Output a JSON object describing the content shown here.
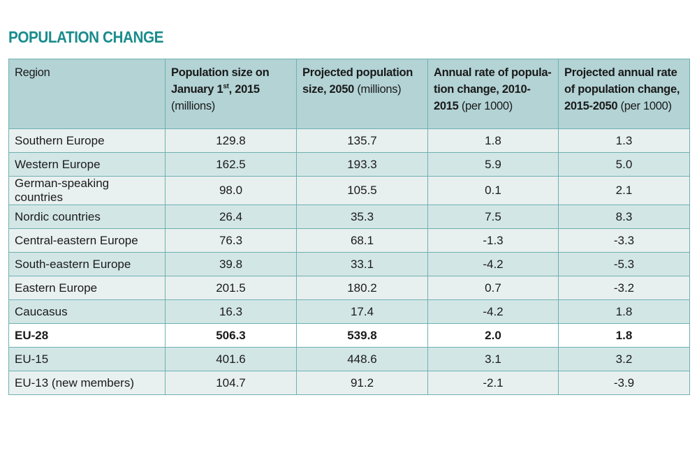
{
  "title": "POPULATION CHANGE",
  "headers": {
    "region": "Region",
    "col1_bold": "Population size on January 1",
    "col1_sup": "st",
    "col1_bold_tail": ", 2015",
    "col1_normal": "(millions)",
    "col2_bold": "Projected population size, 2050",
    "col2_normal": "(millions)",
    "col3_bold": "Annual rate of popula-tion change, 2010-2015",
    "col3_normal": "(per 1000)",
    "col4_bold": "Projected annual rate of population change, 2015-2050",
    "col4_normal": "(per 1000)"
  },
  "rows": [
    {
      "region": "Southern Europe",
      "pop2015": "129.8",
      "pop2050": "135.7",
      "rate_2010_2015": "1.8",
      "rate_2015_2050": "1.3"
    },
    {
      "region": "Western Europe",
      "pop2015": "162.5",
      "pop2050": "193.3",
      "rate_2010_2015": "5.9",
      "rate_2015_2050": "5.0"
    },
    {
      "region": "German-speaking countries",
      "pop2015": "98.0",
      "pop2050": "105.5",
      "rate_2010_2015": "0.1",
      "rate_2015_2050": "2.1"
    },
    {
      "region": "Nordic countries",
      "pop2015": "26.4",
      "pop2050": "35.3",
      "rate_2010_2015": "7.5",
      "rate_2015_2050": "8.3"
    },
    {
      "region": "Central-eastern Europe",
      "pop2015": "76.3",
      "pop2050": "68.1",
      "rate_2010_2015": "-1.3",
      "rate_2015_2050": "-3.3"
    },
    {
      "region": "South-eastern Europe",
      "pop2015": "39.8",
      "pop2050": "33.1",
      "rate_2010_2015": "-4.2",
      "rate_2015_2050": "-5.3"
    },
    {
      "region": "Eastern Europe",
      "pop2015": "201.5",
      "pop2050": "180.2",
      "rate_2010_2015": "0.7",
      "rate_2015_2050": "-3.2"
    },
    {
      "region": "Caucasus",
      "pop2015": "16.3",
      "pop2050": "17.4",
      "rate_2010_2015": "-4.2",
      "rate_2015_2050": "1.8"
    },
    {
      "region": "EU-28",
      "pop2015": "506.3",
      "pop2050": "539.8",
      "rate_2010_2015": "2.0",
      "rate_2015_2050": "1.8"
    },
    {
      "region": "EU-15",
      "pop2015": "401.6",
      "pop2050": "448.6",
      "rate_2010_2015": "3.1",
      "rate_2015_2050": "3.2"
    },
    {
      "region": "EU-13 (new members)",
      "pop2015": "104.7",
      "pop2050": "91.2",
      "rate_2010_2015": "-2.1",
      "rate_2015_2050": "-3.9"
    }
  ],
  "colors": {
    "title": "#1a8c8c",
    "header_bg": "#b3d3d5",
    "border": "#6fb0b0"
  }
}
